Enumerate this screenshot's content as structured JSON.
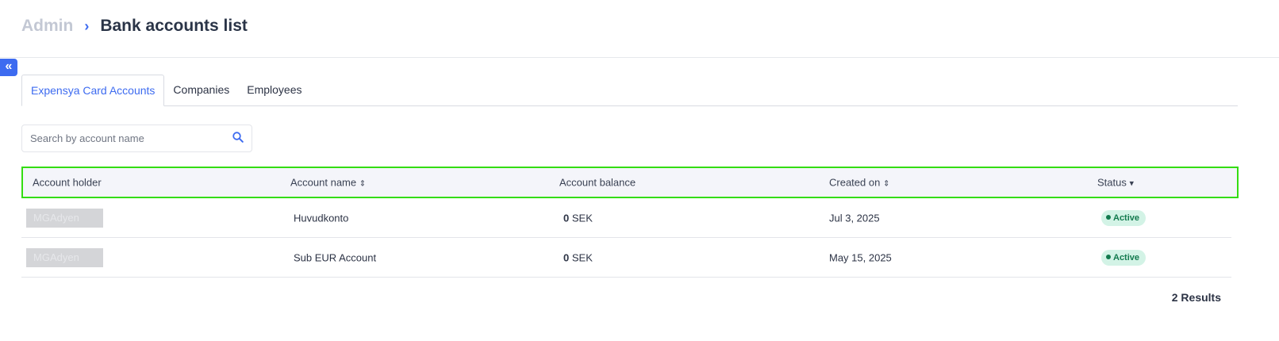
{
  "breadcrumb": {
    "parent": "Admin",
    "separator": "›",
    "title": "Bank accounts list"
  },
  "collapse_icon": "«",
  "tabs": [
    {
      "label": "Expensya Card Accounts",
      "active": true
    },
    {
      "label": "Companies"
    },
    {
      "label": "Employees"
    }
  ],
  "search": {
    "placeholder": "Search by account name",
    "icon": "search-icon"
  },
  "table": {
    "headers": [
      "Account holder",
      "Account name",
      "Account balance",
      "Created on",
      "Status"
    ],
    "sort_icons": {
      "account_name": "⇕",
      "created_on": "⇕",
      "status": "▾"
    },
    "rows": [
      {
        "holder": "MGAdyen",
        "name": "Huvudkonto",
        "balance": "0",
        "currency": "SEK",
        "created": "Jul 3, 2025",
        "status": "Active"
      },
      {
        "holder": "MGAdyen",
        "name": "Sub EUR Account",
        "balance": "0",
        "currency": "SEK",
        "created": "May 15, 2025",
        "status": "Active"
      }
    ]
  },
  "status_colors": {
    "active_bg": "#d3f3e6",
    "active_text": "#137a4e"
  },
  "results": "2 Results"
}
